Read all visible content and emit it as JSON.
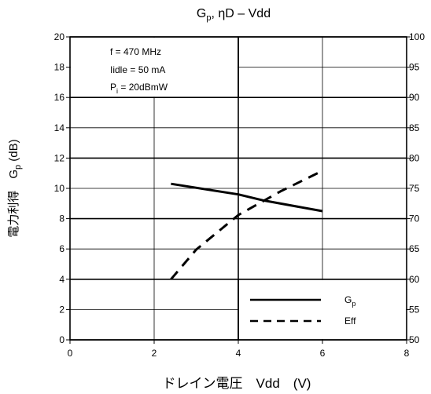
{
  "chart_data": {
    "type": "line",
    "title": {
      "main": "G",
      "main_sub": "p",
      "rest": ", ηD – Vdd"
    },
    "xlabel": "ドレイン電圧　Vdd　(V)",
    "ylabel": {
      "text": "電力利得　G",
      "sub": "p",
      "rest": " (dB)"
    },
    "xlim": [
      0,
      8
    ],
    "ylim": [
      0,
      20
    ],
    "ylim_right": [
      50,
      100
    ],
    "x_ticks": [
      "0",
      "2",
      "4",
      "6",
      "8"
    ],
    "y_ticks": [
      "0",
      "2",
      "4",
      "6",
      "8",
      "10",
      "12",
      "14",
      "16",
      "18",
      "20"
    ],
    "y2_ticks": [
      "50",
      "55",
      "60",
      "65",
      "70",
      "75",
      "80",
      "85",
      "90",
      "95",
      "100"
    ],
    "grid": true,
    "conditions": {
      "line1": "f = 470 MHz",
      "line2": "Iidle = 50 mA",
      "line3_main": "P",
      "line3_sub": "i",
      "line3_rest": " = 20dBmW"
    },
    "legend": {
      "placement": "bottom-right",
      "gp_main": "G",
      "gp_sub": "p",
      "eff": "Eff"
    },
    "series": [
      {
        "name": "Gp",
        "axis": "left",
        "style": "solid",
        "x": [
          2.4,
          4.0,
          4.6,
          6.0
        ],
        "y": [
          10.3,
          9.6,
          9.2,
          8.5
        ]
      },
      {
        "name": "Eff",
        "axis": "right",
        "style": "dashed",
        "x": [
          2.4,
          3.0,
          4.0,
          5.0,
          6.0
        ],
        "y": [
          60.0,
          64.9,
          70.6,
          74.5,
          77.9
        ]
      }
    ]
  }
}
